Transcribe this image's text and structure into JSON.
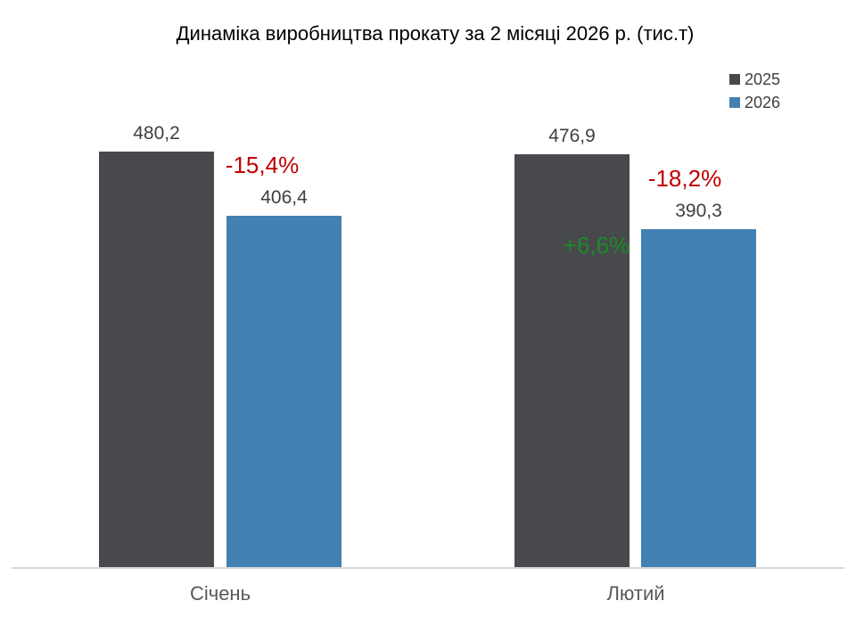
{
  "chart_data": {
    "type": "bar",
    "title": "Динаміка виробництва прокату за 2 місяці 2026 р. (тис.т)",
    "categories": [
      "Січень",
      "Лютий"
    ],
    "series": [
      {
        "name": "2025",
        "color": "#47494D",
        "values": [
          480.2,
          476.9
        ],
        "value_labels": [
          "480,2",
          "476,9"
        ]
      },
      {
        "name": "2026",
        "color": "#4381B2",
        "values": [
          406.4,
          390.3
        ],
        "value_labels": [
          "406,4",
          "390,3"
        ]
      }
    ],
    "delta_labels": [
      {
        "text": "-15,4%",
        "color": "#C00000"
      },
      {
        "text": "-18,2%",
        "color": "#C00000"
      },
      {
        "text": "+6,6%",
        "color": "#1F8B24"
      }
    ],
    "ylim": [
      0,
      500
    ],
    "grid": false,
    "legend_position": "top-right",
    "value_label_color": "#404040",
    "axis_line_color": "#D9D9D9"
  }
}
